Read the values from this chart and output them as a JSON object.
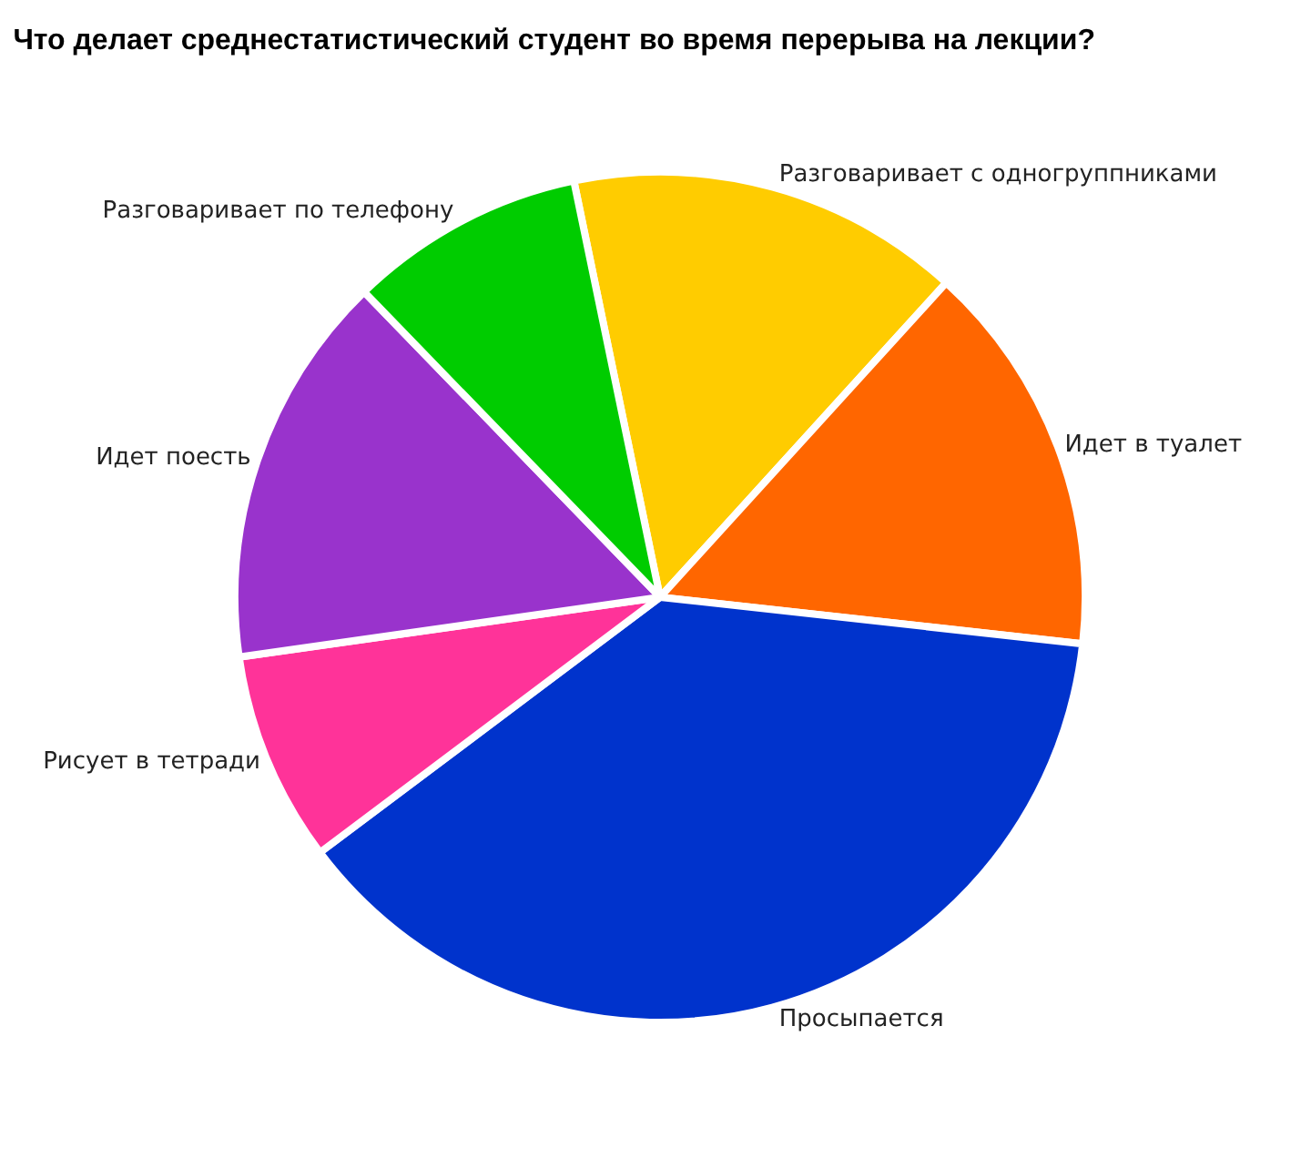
{
  "chart_data": {
    "type": "pie",
    "title": "Что делает среднестатистический студент во время перерыва на лекции?",
    "categories": [
      "Разговаривает с одногруппниками",
      "Идет в туалет",
      "Просыпается",
      "Рисует в тетради",
      "Идет поесть",
      "Разговаривает по телефону"
    ],
    "values": [
      15,
      15,
      38,
      8,
      15,
      9
    ],
    "colors": [
      "#ffcc00",
      "#ff6600",
      "#0033cc",
      "#ff3399",
      "#9933cc",
      "#00cc00"
    ],
    "legend": false
  }
}
